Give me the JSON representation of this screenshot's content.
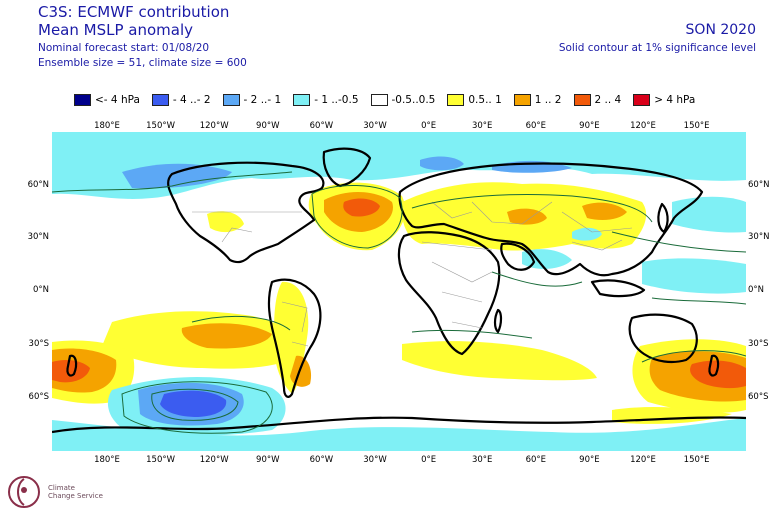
{
  "header": {
    "title": "C3S: ECMWF contribution",
    "subtitle": "Mean MSLP anomaly",
    "forecast_start": "Nominal forecast start: 01/08/20",
    "ensemble": "Ensemble size = 51, climate size = 600",
    "season": "SON 2020",
    "note": "Solid contour at 1% significance level"
  },
  "legend": [
    {
      "label": "<- 4 hPa",
      "color": "#00008b"
    },
    {
      "label": "- 4 ..- 2",
      "color": "#3b5cf0"
    },
    {
      "label": "- 2 ..- 1",
      "color": "#5ca8f5"
    },
    {
      "label": "- 1 ..-0.5",
      "color": "#7ff0f5"
    },
    {
      "label": "-0.5..0.5",
      "color": "#ffffff"
    },
    {
      "label": "0.5.. 1",
      "color": "#ffff33"
    },
    {
      "label": "1 .. 2",
      "color": "#f5a300"
    },
    {
      "label": "2 .. 4",
      "color": "#f25a0a"
    },
    {
      "label": "> 4 hPa",
      "color": "#d9001a"
    }
  ],
  "lon_labels": [
    "180°E",
    "150°W",
    "120°W",
    "90°W",
    "60°W",
    "30°W",
    "0°E",
    "30°E",
    "60°E",
    "90°E",
    "120°E",
    "150°E"
  ],
  "lat_labels": [
    "60°N",
    "30°N",
    "0°N",
    "30°S",
    "60°S"
  ],
  "logo": {
    "line1": "Climate",
    "line2": "Change Service"
  }
}
